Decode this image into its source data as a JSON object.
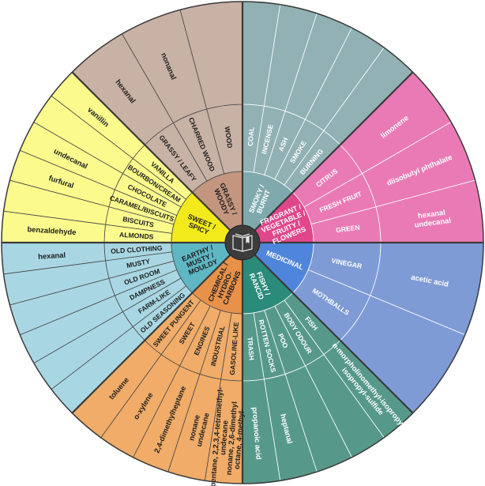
{
  "center_icon": "open-book-icon",
  "categories": [
    {
      "name": [
        "SMOKY /",
        "BURNT"
      ],
      "inner_color": "#7fa9ad",
      "color": "#91b1b4",
      "text_color": "#ffffff",
      "line_color": "#ffffff",
      "subcategories": [
        {
          "label": "COAL",
          "compounds": []
        },
        {
          "label": "INCENSE",
          "compounds": []
        },
        {
          "label": "ASH",
          "compounds": []
        },
        {
          "label": "SMOKE",
          "compounds": []
        },
        {
          "label": "BURNING",
          "compounds": []
        }
      ]
    },
    {
      "name": [
        "FRAGRANT /",
        "VEGETABLE /",
        "FRUITY /",
        "FLOWERS"
      ],
      "inner_color": "#e0478b",
      "color": "#ea7ab5",
      "text_color": "#ffffff",
      "line_color": "#ffffff",
      "subcategories": [
        {
          "label": "CITRUS",
          "compounds": [
            "limonene"
          ]
        },
        {
          "label": "FRESH FRUIT",
          "compounds": [
            "diisobutyl phthalate"
          ]
        },
        {
          "label": "GREEN",
          "compounds": [
            "hexanal",
            "undecanal"
          ]
        }
      ]
    },
    {
      "name": [
        "MEDICINAL"
      ],
      "inner_color": "#4f86dc",
      "color": "#7f9bd6",
      "text_color": "#ffffff",
      "line_color": "#ffffff",
      "subcategories": [
        {
          "label": "VINEGAR",
          "compounds": [
            "acetic acid"
          ]
        },
        {
          "label": "MOTHBALLS",
          "compounds": []
        }
      ]
    },
    {
      "name": [
        "FISHY /",
        "RANCID"
      ],
      "inner_color": "#2a8b7a",
      "color": "#56998b",
      "text_color": "#ffffff",
      "line_color": "#ffffff",
      "subcategories": [
        {
          "label": "FISH",
          "compounds": [
            "n-morpholinomethyl-isopropyl-",
            "isopropyl-sulfide"
          ]
        },
        {
          "label": "BODY ODOUR",
          "compounds": []
        },
        {
          "label": "POO",
          "compounds": []
        },
        {
          "label": "ROTTEN SOCKS",
          "compounds": [
            "heptanal"
          ]
        },
        {
          "label": "TRASH",
          "compounds": [
            "propanoic acid"
          ]
        }
      ]
    },
    {
      "name": [
        "CHEMICAL /",
        "HYDRO-",
        "CARBONS"
      ],
      "inner_color": "#e8914a",
      "color": "#f0ac68",
      "text_color": "#1e1e1e",
      "line_color": "#4a4a4a",
      "subcategories": [
        {
          "label": "GASOLINE-LIKE",
          "compounds": [
            "pentane, 2,2,3,4-tetramethyl-",
            "undecane",
            "nonane, 2,6-dimethyl",
            "octane, 4-methyl-"
          ]
        },
        {
          "label": "INDUSTRIAL",
          "compounds": [
            "nonane",
            "undecane"
          ]
        },
        {
          "label": "ENGINES",
          "compounds": [
            "2,4-dimethylheptane"
          ]
        },
        {
          "label": "SWEET",
          "compounds": [
            "o-xylene"
          ]
        },
        {
          "label": "SWEET PUNGENT",
          "compounds": [
            "toluene"
          ]
        }
      ]
    },
    {
      "name": [
        "EARTHY /",
        "MUSTY /",
        "MOULDY"
      ],
      "inner_color": "#5eb7c3",
      "color": "#a8d7e3",
      "text_color": "#1e1e1e",
      "line_color": "#4a4a4a",
      "subcategories": [
        {
          "label": "OLD SEASONING",
          "compounds": []
        },
        {
          "label": "FARM-LIKE",
          "compounds": []
        },
        {
          "label": "DAMPNESS",
          "compounds": []
        },
        {
          "label": "OLD ROOM",
          "compounds": []
        },
        {
          "label": "MUSTY",
          "compounds": []
        },
        {
          "label": "OLD CLOTHING",
          "compounds": [
            "hexanal"
          ]
        }
      ]
    },
    {
      "name": [
        "SWEET /",
        "SPICY"
      ],
      "inner_color": "#f3ea1c",
      "color": "#fafb8c",
      "text_color": "#1e1e1e",
      "line_color": "#4a4a4a",
      "subcategories": [
        {
          "label": "ALMONDS",
          "compounds": [
            "benzaldehyde"
          ]
        },
        {
          "label": "BISCUITS",
          "compounds": []
        },
        {
          "label": "CARAMEL/BISCUITS",
          "compounds": [
            "furfural"
          ]
        },
        {
          "label": "CHOCOLATE",
          "compounds": [
            "undecanal"
          ]
        },
        {
          "label": "BOURBON/CREAM",
          "compounds": []
        },
        {
          "label": "VANILLA",
          "compounds": [
            "vanillin"
          ]
        }
      ]
    },
    {
      "name": [
        "GRASSY /",
        "WOODY"
      ],
      "inner_color": "#c49680",
      "color": "#c8b1a5",
      "text_color": "#1e1e1e",
      "line_color": "#4a4a4a",
      "subcategories": [
        {
          "label": "GRASSY / LEAFY",
          "compounds": [
            "hexanal"
          ]
        },
        {
          "label": "CHARRED WOOD",
          "compounds": [
            "nonanal"
          ]
        },
        {
          "label": "WOOD",
          "compounds": []
        }
      ]
    }
  ]
}
